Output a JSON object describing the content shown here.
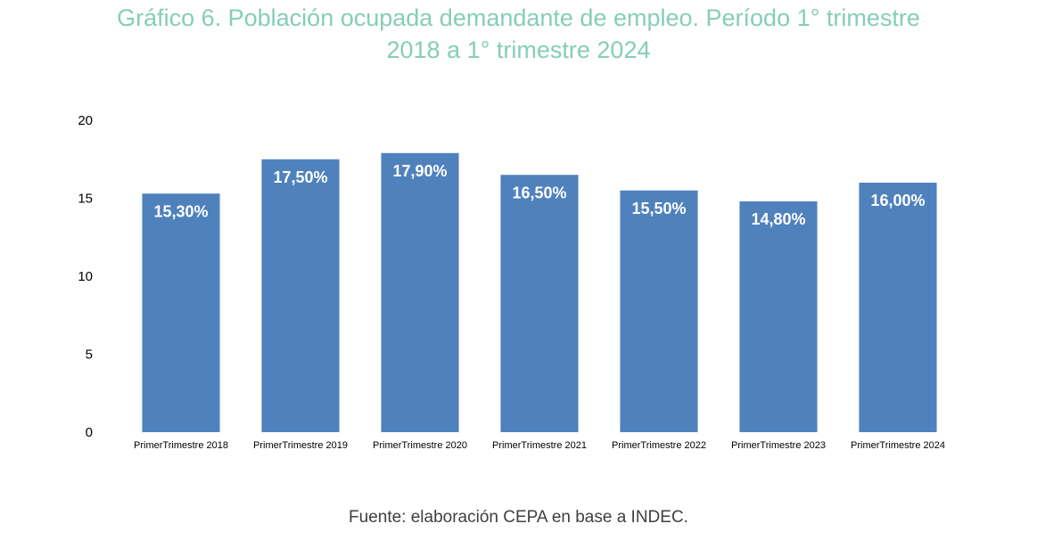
{
  "page": {
    "title_line1": "Gráfico 6. Población ocupada demandante de empleo. Período 1° trimestre",
    "title_line2": "2018 a 1° trimestre 2024",
    "source": "Fuente: elaboración CEPA en base a INDEC."
  },
  "chart_data": {
    "type": "bar",
    "categories": [
      "PrimerTrimestre 2018",
      "PrimerTrimestre 2019",
      "PrimerTrimestre 2020",
      "PrimerTrimestre 2021",
      "PrimerTrimestre 2022",
      "PrimerTrimestre 2023",
      "PrimerTrimestre 2024"
    ],
    "values": [
      15.3,
      17.5,
      17.9,
      16.5,
      15.5,
      14.8,
      16.0
    ],
    "data_labels": [
      "15,30%",
      "17,50%",
      "17,90%",
      "16,50%",
      "15,50%",
      "14,80%",
      "16,00%"
    ],
    "yticks": [
      "0",
      "5",
      "10",
      "15",
      "20"
    ],
    "ylim": [
      0,
      20
    ],
    "bar_color": "#4f81bd",
    "label_color": "#ffffff",
    "grid": false,
    "legend": "none"
  }
}
